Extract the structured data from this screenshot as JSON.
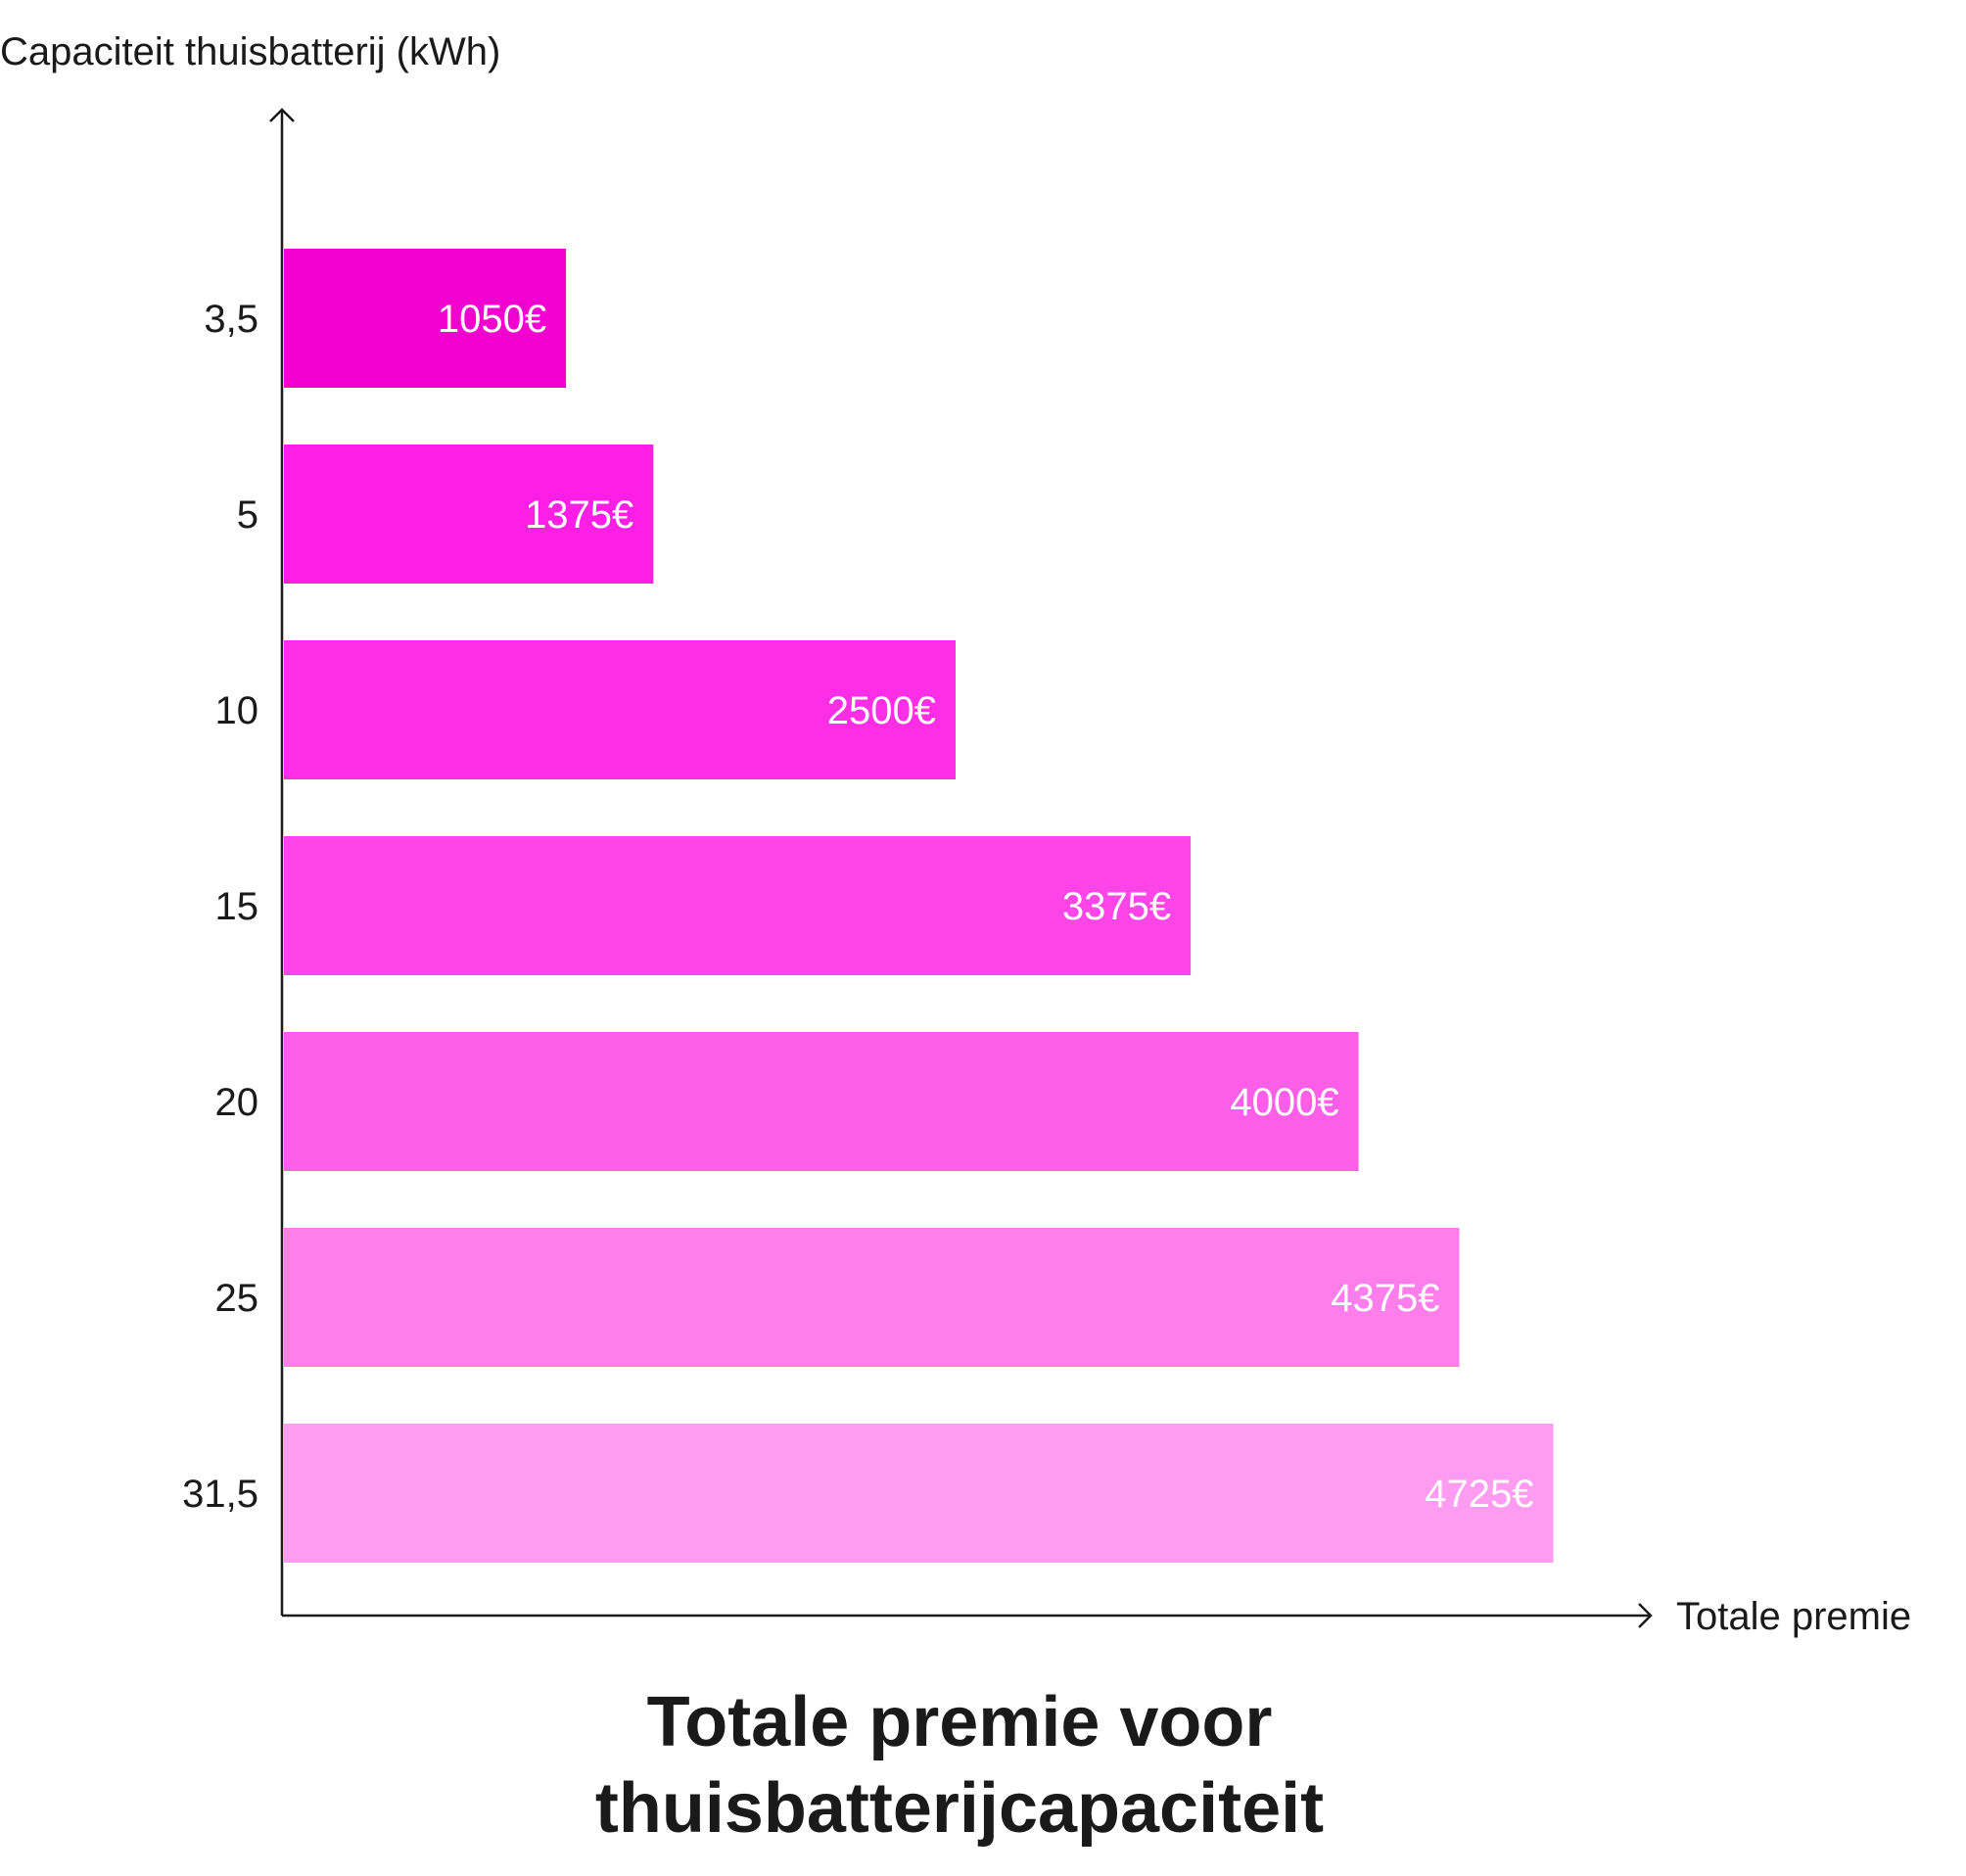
{
  "chart_data": {
    "type": "bar",
    "orientation": "horizontal",
    "title": "Totale premie voor thuisbatterijcapaciteit",
    "title_lines": [
      "Totale premie voor",
      "thuisbatterijcapaciteit"
    ],
    "xlabel": "Totale premie",
    "ylabel": "Capaciteit thuisbatterij (kWh)",
    "categories": [
      "3,5",
      "5",
      "10",
      "15",
      "20",
      "25",
      "31,5"
    ],
    "values": [
      1050,
      1375,
      2500,
      3375,
      4000,
      4375,
      4725
    ],
    "value_labels": [
      "1050€",
      "1375€",
      "2500€",
      "3375€",
      "4000€",
      "4375€",
      "4725€"
    ],
    "unit": "€",
    "colors": [
      "#f200d0",
      "#ff1ee6",
      "#ff2ee6",
      "#ff44e8",
      "#ff5ee9",
      "#ff7eec",
      "#ff9cf2"
    ],
    "xlim": [
      0,
      5000
    ],
    "grid": false,
    "legend": "none"
  }
}
